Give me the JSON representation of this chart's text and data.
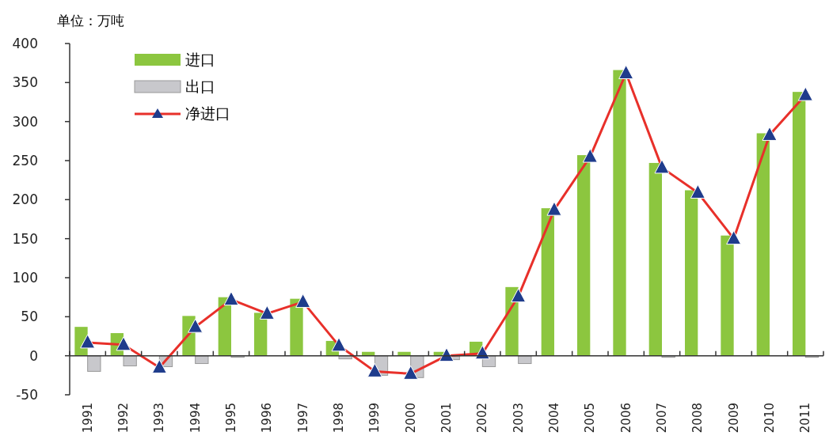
{
  "chart_data": {
    "type": "bar",
    "ylabel": "单位：万吨",
    "categories": [
      "1991",
      "1992",
      "1993",
      "1994",
      "1995",
      "1996",
      "1997",
      "1998",
      "1999",
      "2000",
      "2001",
      "2002",
      "2003",
      "2004",
      "2005",
      "2006",
      "2007",
      "2008",
      "2009",
      "2010",
      "2011"
    ],
    "series": [
      {
        "name": "进口",
        "color": "#8cc63f",
        "values": [
          37,
          29,
          0,
          51,
          75,
          55,
          73,
          19,
          5,
          5,
          5,
          18,
          88,
          189,
          257,
          366,
          247,
          212,
          154,
          285,
          338
        ]
      },
      {
        "name": "出口",
        "color": "#c8c8cc",
        "values": [
          -20,
          -13,
          -14,
          -10,
          -2,
          0,
          0,
          -4,
          -25,
          -28,
          -5,
          -14,
          -10,
          0,
          0,
          0,
          -2,
          0,
          0,
          0,
          -2
        ]
      },
      {
        "name": "净进口",
        "type": "line",
        "color": "#e8302a",
        "marker": "triangle",
        "values": [
          17,
          14,
          -15,
          37,
          72,
          54,
          69,
          13,
          -20,
          -23,
          0,
          3,
          76,
          187,
          255,
          362,
          241,
          209,
          150,
          283,
          334
        ]
      }
    ],
    "ylim": [
      -50,
      400
    ],
    "yticks": [
      -50,
      0,
      50,
      100,
      150,
      200,
      250,
      300,
      350,
      400
    ],
    "legend": "top left"
  }
}
